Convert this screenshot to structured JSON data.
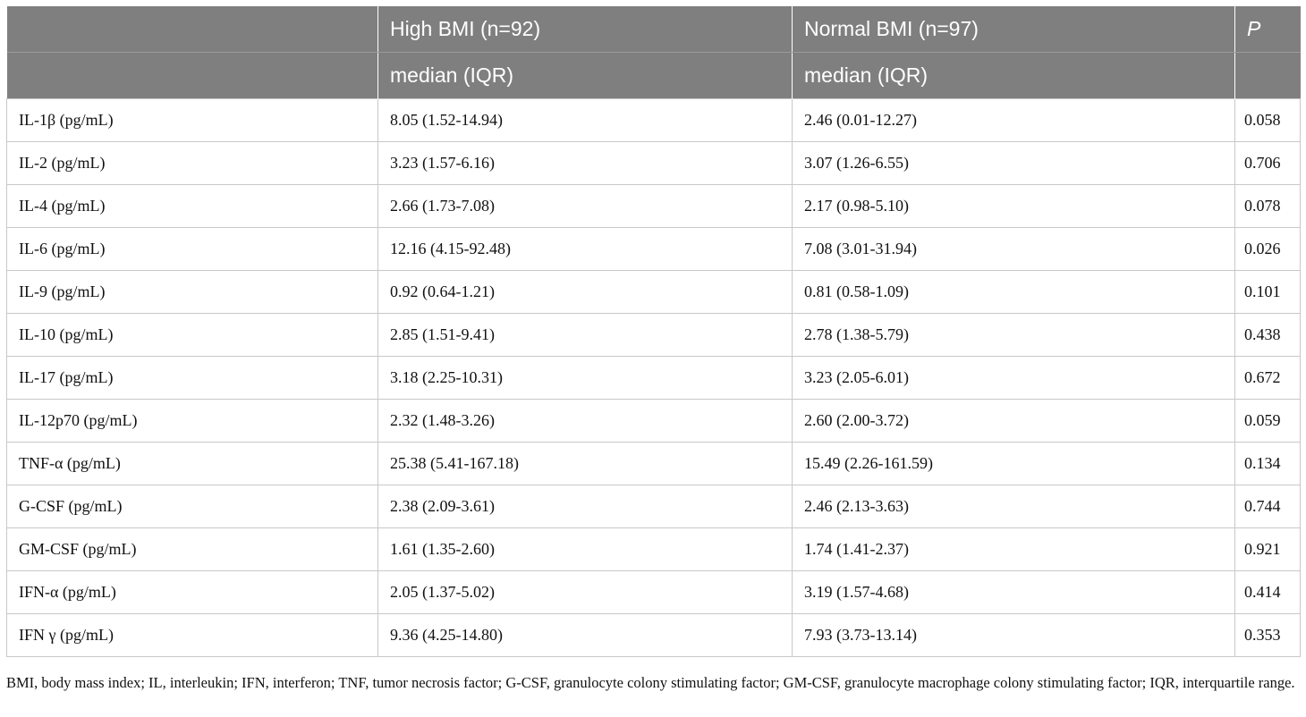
{
  "table": {
    "header_row1": [
      "",
      "High BMI (n=92)",
      "Normal BMI (n=97)",
      "P"
    ],
    "header_row2": [
      "",
      "median (IQR)",
      "median (IQR)",
      ""
    ],
    "rows": [
      [
        "IL-1β (pg/mL)",
        "8.05 (1.52-14.94)",
        "2.46 (0.01-12.27)",
        "0.058"
      ],
      [
        "IL-2 (pg/mL)",
        "3.23 (1.57-6.16)",
        "3.07 (1.26-6.55)",
        "0.706"
      ],
      [
        "IL-4 (pg/mL)",
        "2.66 (1.73-7.08)",
        "2.17 (0.98-5.10)",
        "0.078"
      ],
      [
        "IL-6 (pg/mL)",
        "12.16 (4.15-92.48)",
        "7.08 (3.01-31.94)",
        "0.026"
      ],
      [
        "IL-9 (pg/mL)",
        "0.92 (0.64-1.21)",
        "0.81 (0.58-1.09)",
        "0.101"
      ],
      [
        "IL-10 (pg/mL)",
        "2.85 (1.51-9.41)",
        "2.78 (1.38-5.79)",
        "0.438"
      ],
      [
        "IL-17 (pg/mL)",
        "3.18 (2.25-10.31)",
        "3.23 (2.05-6.01)",
        "0.672"
      ],
      [
        "IL-12p70 (pg/mL)",
        "2.32 (1.48-3.26)",
        "2.60 (2.00-3.72)",
        "0.059"
      ],
      [
        "TNF-α (pg/mL)",
        "25.38 (5.41-167.18)",
        "15.49 (2.26-161.59)",
        "0.134"
      ],
      [
        "G-CSF (pg/mL)",
        "2.38 (2.09-3.61)",
        "2.46 (2.13-3.63)",
        "0.744"
      ],
      [
        "GM-CSF (pg/mL)",
        "1.61 (1.35-2.60)",
        "1.74 (1.41-2.37)",
        "0.921"
      ],
      [
        "IFN-α (pg/mL)",
        "2.05 (1.37-5.02)",
        "3.19 (1.57-4.68)",
        "0.414"
      ],
      [
        "IFN γ (pg/mL)",
        "9.36 (4.25-14.80)",
        "7.93 (3.73-13.14)",
        "0.353"
      ]
    ]
  },
  "footnote": "BMI, body mass index; IL, interleukin; IFN, interferon; TNF, tumor necrosis factor; G-CSF, granulocyte colony stimulating factor; GM-CSF, granulocyte macrophage colony stimulating factor; IQR, interquartile range."
}
